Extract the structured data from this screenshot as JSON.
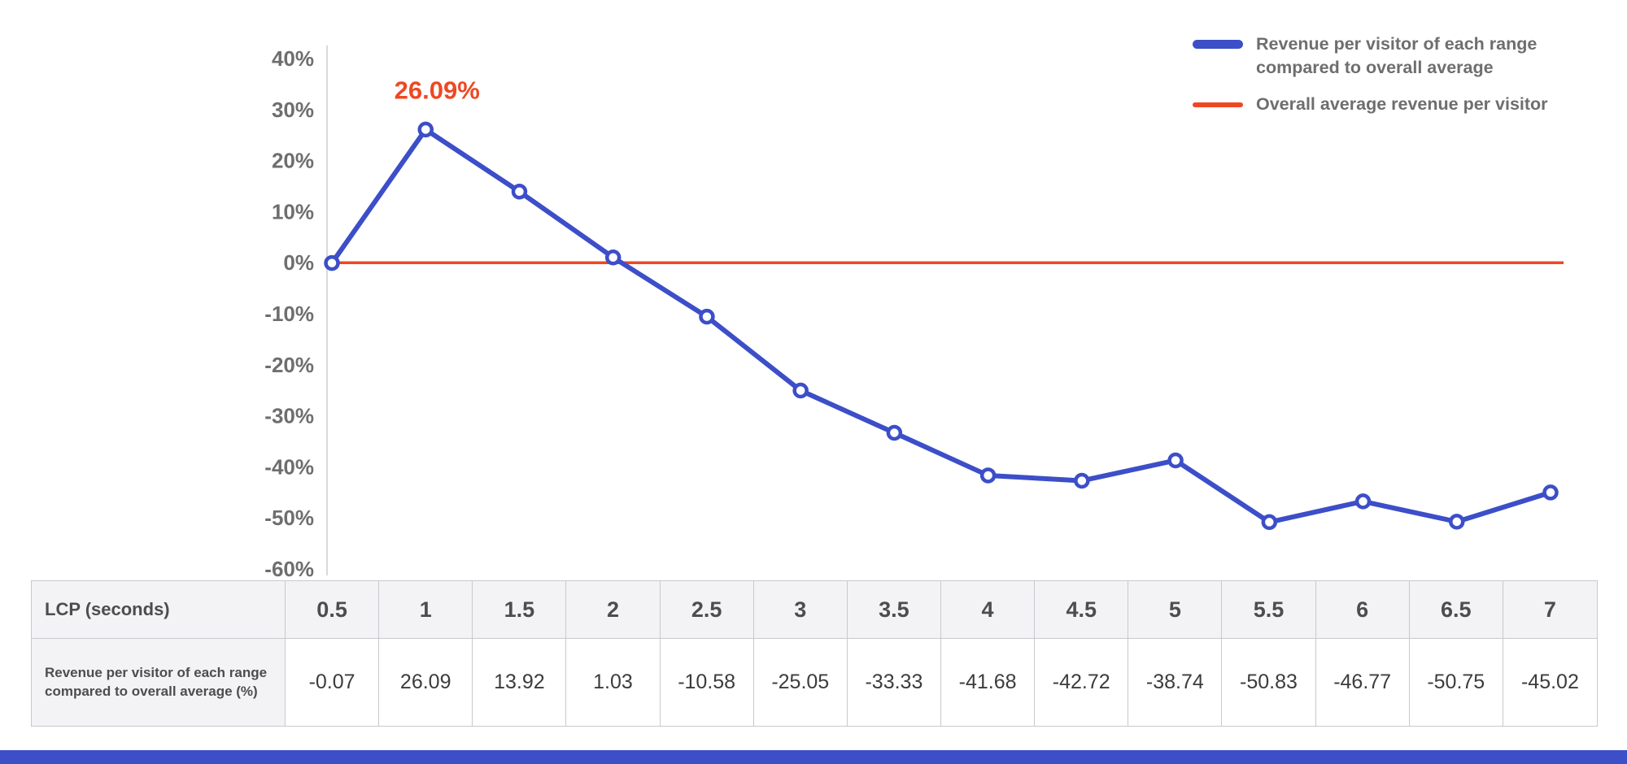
{
  "page": {
    "background": "#ffffff",
    "accent_blue": "#3c4ec8",
    "accent_red": "#ee4823"
  },
  "chart_data": {
    "type": "line",
    "x": [
      0.5,
      1,
      1.5,
      2,
      2.5,
      3,
      3.5,
      4,
      4.5,
      5,
      5.5,
      6,
      6.5,
      7
    ],
    "xlabel": "LCP (seconds)",
    "ylabel": "",
    "ylim": [
      -60,
      40
    ],
    "ytick_step": 10,
    "ytick_labels": [
      "40%",
      "30%",
      "20%",
      "10%",
      "0%",
      "-10%",
      "-20%",
      "-30%",
      "-40%",
      "-50%",
      "-60%"
    ],
    "grid": false,
    "legend_position": "top-right",
    "series": [
      {
        "name": "Revenue per visitor of each range compared to overall average",
        "color": "#3c4ec8",
        "values": [
          -0.07,
          26.09,
          13.92,
          1.03,
          -10.58,
          -25.05,
          -33.33,
          -41.68,
          -42.72,
          -38.74,
          -50.83,
          -46.77,
          -50.75,
          -45.02
        ]
      }
    ],
    "reference_line": {
      "name": "Overall average revenue per visitor",
      "value": 0,
      "color": "#ee4823"
    },
    "annotation": {
      "text": "26.09%",
      "x": 1,
      "y": 26.09,
      "color": "#ee4823"
    }
  },
  "legend": {
    "items": [
      {
        "label": "Revenue per visitor of each range compared to overall average",
        "color": "#3c4ec8"
      },
      {
        "label": "Overall average revenue per visitor",
        "color": "#ee4823"
      }
    ]
  },
  "table": {
    "header_label": "LCP (seconds)",
    "row_label": "Revenue per visitor of each range compared to overall average (%)",
    "columns": [
      "0.5",
      "1",
      "1.5",
      "2",
      "2.5",
      "3",
      "3.5",
      "4",
      "4.5",
      "5",
      "5.5",
      "6",
      "6.5",
      "7"
    ],
    "values": [
      "-0.07",
      "26.09",
      "13.92",
      "1.03",
      "-10.58",
      "-25.05",
      "-33.33",
      "-41.68",
      "-42.72",
      "-38.74",
      "-50.83",
      "-46.77",
      "-50.75",
      "-45.02"
    ]
  }
}
